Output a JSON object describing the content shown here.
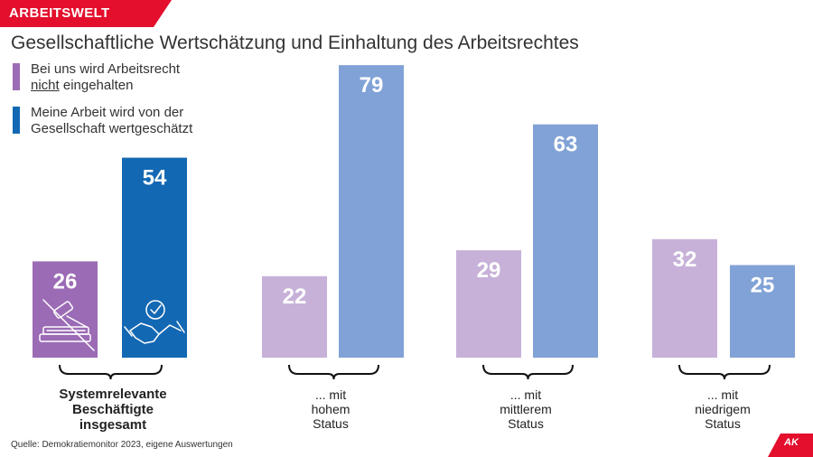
{
  "header": {
    "tag": "ARBEITSWELT",
    "title": "Gesellschaftliche Wertschätzung und Einhaltung des Arbeitsrechtes"
  },
  "legend": [
    {
      "line1": "Bei uns wird Arbeitsrecht",
      "line2_underlined": "nicht",
      "line2_rest": " eingehalten",
      "color": "#9b6bb5"
    },
    {
      "line1": "Meine Arbeit wird von der",
      "line2": "Gesellschaft wertgeschätzt",
      "color": "#1368b3"
    }
  ],
  "chart_data": {
    "type": "bar",
    "categories": [
      "Systemrelevante Beschäftigte insgesamt",
      "... mit hohem Status",
      "... mit mittlerem Status",
      "... mit niedrigem Status"
    ],
    "series": [
      {
        "name": "Bei uns wird Arbeitsrecht nicht eingehalten",
        "values": [
          26,
          22,
          29,
          32
        ]
      },
      {
        "name": "Meine Arbeit wird von der Gesellschaft wertgeschätzt",
        "values": [
          54,
          79,
          63,
          25
        ]
      }
    ],
    "colors": {
      "highlight_purple": "#9b6bb5",
      "highlight_blue": "#1368b3",
      "muted_purple": "#c7b1d8",
      "muted_blue": "#81a2d6"
    },
    "ylim": [
      0,
      80
    ],
    "grid": false,
    "legend": "top-left",
    "icons": [
      "gavel-book-icon",
      "handshake-icon"
    ]
  },
  "group_labels": [
    {
      "lines": [
        "Systemrelevante",
        "Beschäftigte",
        "insgesamt"
      ],
      "bold": true
    },
    {
      "lines": [
        "... mit",
        "hohem",
        "Status"
      ],
      "bold": false
    },
    {
      "lines": [
        "... mit",
        "mittlerem",
        "Status"
      ],
      "bold": false
    },
    {
      "lines": [
        "... mit",
        "niedrigem",
        "Status"
      ],
      "bold": false
    }
  ],
  "footer": {
    "source": "Quelle: Demokratiemonitor 2023, eigene Auswertungen",
    "logo_text": "AK",
    "logo_color": "#e30f2d"
  }
}
